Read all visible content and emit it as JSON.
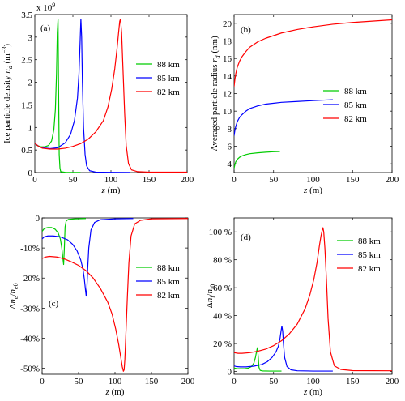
{
  "figure": {
    "panels": [
      "a",
      "b",
      "c",
      "d"
    ]
  },
  "chart_data": [
    {
      "type": "line",
      "panel_label": "(a)",
      "xlabel": "z (m)",
      "ylabel": "Ice particle density n_d (m^-3)",
      "y_multiplier": "x 10^9",
      "xlim": [
        0,
        200
      ],
      "ylim": [
        0,
        3.5
      ],
      "xticks": [
        0,
        50,
        100,
        150,
        200
      ],
      "yticks": [
        0,
        0.5,
        1,
        1.5,
        2,
        2.5,
        3,
        3.5
      ],
      "ytick_labels": [
        "0",
        "0.5",
        "1",
        "1.5",
        "2",
        "2.5",
        "3",
        "3.5"
      ],
      "grid": false,
      "legend_position": "right",
      "series": [
        {
          "name": "88 km",
          "color": "#00cc00",
          "x": [
            0,
            3,
            8,
            13,
            18,
            22,
            25,
            27,
            28.5,
            29.5,
            30.5,
            31,
            32,
            33,
            34,
            40,
            60
          ],
          "y": [
            0.65,
            0.6,
            0.57,
            0.57,
            0.6,
            0.7,
            0.95,
            1.4,
            2.2,
            3.1,
            3.4,
            2.2,
            0.4,
            0.1,
            0.02,
            0.005,
            0.003
          ]
        },
        {
          "name": "85 km",
          "color": "#0000ff",
          "x": [
            0,
            5,
            10,
            20,
            30,
            40,
            47,
            52,
            56,
            58,
            59.5,
            60.5,
            61.5,
            62.5,
            64,
            66,
            68,
            72,
            80,
            100,
            125
          ],
          "y": [
            0.65,
            0.58,
            0.55,
            0.53,
            0.55,
            0.66,
            0.85,
            1.15,
            1.65,
            2.2,
            2.9,
            3.4,
            3.0,
            2.0,
            1.0,
            0.4,
            0.15,
            0.04,
            0.01,
            0.005,
            0.003
          ]
        },
        {
          "name": "82 km",
          "color": "#ff0000",
          "x": [
            0,
            5,
            10,
            20,
            30,
            40,
            50,
            60,
            70,
            80,
            90,
            96,
            101,
            105,
            108,
            110,
            111.5,
            112.5,
            114,
            116,
            118,
            120,
            123,
            127,
            135,
            150,
            200
          ],
          "y": [
            0.65,
            0.58,
            0.54,
            0.52,
            0.52,
            0.54,
            0.58,
            0.64,
            0.74,
            0.9,
            1.15,
            1.45,
            1.85,
            2.3,
            2.75,
            3.1,
            3.35,
            3.4,
            3.1,
            2.2,
            1.3,
            0.6,
            0.2,
            0.06,
            0.02,
            0.01,
            0.01
          ]
        }
      ]
    },
    {
      "type": "line",
      "panel_label": "(b)",
      "xlabel": "z (m)",
      "ylabel": "Averaged particle radius r_d (nm)",
      "xlim": [
        0,
        200
      ],
      "ylim": [
        3,
        21
      ],
      "xticks": [
        0,
        50,
        100,
        150,
        200
      ],
      "yticks": [
        4,
        6,
        8,
        10,
        12,
        14,
        16,
        18,
        20
      ],
      "grid": false,
      "legend_position": "right",
      "series": [
        {
          "name": "88 km",
          "color": "#00cc00",
          "x": [
            0,
            1,
            2,
            4,
            7,
            10,
            15,
            20,
            30,
            40,
            50,
            58
          ],
          "y": [
            3.5,
            3.9,
            4.2,
            4.5,
            4.75,
            4.9,
            5.05,
            5.15,
            5.25,
            5.32,
            5.37,
            5.4
          ]
        },
        {
          "name": "85 km",
          "color": "#0000ff",
          "x": [
            0,
            1,
            2,
            4,
            7,
            10,
            15,
            20,
            30,
            40,
            60,
            80,
            100,
            125
          ],
          "y": [
            7.2,
            7.8,
            8.2,
            8.8,
            9.3,
            9.6,
            10.0,
            10.3,
            10.6,
            10.8,
            11.0,
            11.1,
            11.2,
            11.3
          ]
        },
        {
          "name": "82 km",
          "color": "#ff0000",
          "x": [
            0,
            1,
            2,
            4,
            7,
            10,
            15,
            20,
            30,
            40,
            60,
            80,
            100,
            125,
            150,
            175,
            200
          ],
          "y": [
            12.8,
            13.6,
            14.2,
            15.0,
            15.7,
            16.2,
            16.8,
            17.3,
            17.9,
            18.3,
            18.9,
            19.3,
            19.6,
            19.9,
            20.1,
            20.25,
            20.4
          ]
        }
      ]
    },
    {
      "type": "line",
      "panel_label": "(c)",
      "xlabel": "z (m)",
      "ylabel": "Δn_e/n_e0",
      "xlim": [
        0,
        200
      ],
      "ylim": [
        -52,
        0
      ],
      "xticks": [
        0,
        50,
        100,
        150,
        200
      ],
      "yticks": [
        0,
        -10,
        -20,
        -30,
        -40,
        -50
      ],
      "ytick_labels": [
        "0",
        "-10%",
        "-20%",
        "-30%",
        "-40%",
        "-50%"
      ],
      "grid": false,
      "legend_position": "right",
      "series": [
        {
          "name": "88 km",
          "color": "#00cc00",
          "x": [
            0,
            3,
            8,
            13,
            18,
            22,
            25,
            27,
            28.5,
            29.5,
            30.5,
            31.5,
            33,
            36,
            45,
            60
          ],
          "y": [
            -4.5,
            -3.5,
            -3.2,
            -3.2,
            -3.8,
            -5.0,
            -7.0,
            -10.0,
            -13.5,
            -15.5,
            -10.0,
            -3.0,
            -1.0,
            -0.5,
            -0.3,
            -0.2
          ]
        },
        {
          "name": "85 km",
          "color": "#0000ff",
          "x": [
            0,
            3,
            8,
            15,
            25,
            35,
            42,
            48,
            53,
            56,
            58,
            59.5,
            60.5,
            61.5,
            62.5,
            64,
            67,
            72,
            80,
            100,
            125
          ],
          "y": [
            -7.0,
            -6.3,
            -6.0,
            -6.0,
            -6.3,
            -7.3,
            -8.8,
            -11.0,
            -14.0,
            -17.0,
            -20.5,
            -24.0,
            -26.0,
            -23.0,
            -17.0,
            -10.0,
            -4.0,
            -1.5,
            -0.6,
            -0.3,
            -0.2
          ]
        },
        {
          "name": "82 km",
          "color": "#ff0000",
          "x": [
            0,
            5,
            10,
            20,
            30,
            40,
            50,
            60,
            70,
            80,
            90,
            96,
            101,
            105,
            108,
            110,
            111.5,
            112.5,
            113.5,
            115,
            117,
            119,
            122,
            127,
            135,
            150,
            200
          ],
          "y": [
            -13.5,
            -13.0,
            -12.8,
            -13.0,
            -13.6,
            -14.6,
            -15.8,
            -17.5,
            -20.0,
            -23.5,
            -28.0,
            -32.0,
            -37.0,
            -42.0,
            -46.5,
            -49.5,
            -51.0,
            -50.5,
            -47.0,
            -38.0,
            -26.0,
            -15.0,
            -6.0,
            -2.0,
            -0.8,
            -0.3,
            -0.2
          ]
        }
      ]
    },
    {
      "type": "line",
      "panel_label": "(d)",
      "xlabel": "z (m)",
      "ylabel": "Δn_i/n_i0",
      "xlim": [
        0,
        200
      ],
      "ylim": [
        -2,
        110
      ],
      "xticks": [
        0,
        50,
        100,
        150,
        200
      ],
      "yticks": [
        0,
        20,
        40,
        60,
        80,
        100
      ],
      "ytick_labels": [
        "0",
        "20 %",
        "40 %",
        "60 %",
        "80 %",
        "100 %"
      ],
      "grid": false,
      "legend_position": "top-right",
      "series": [
        {
          "name": "88 km",
          "color": "#00cc00",
          "x": [
            0,
            3,
            8,
            13,
            18,
            22,
            25,
            27,
            28.5,
            29.5,
            30.5,
            31.5,
            33,
            36,
            45,
            60
          ],
          "y": [
            2.5,
            2.1,
            2.0,
            2.0,
            2.4,
            3.5,
            6.0,
            10.0,
            14.5,
            17.0,
            11.0,
            3.0,
            0.8,
            0.4,
            0.3,
            0.3
          ]
        },
        {
          "name": "85 km",
          "color": "#0000ff",
          "x": [
            0,
            3,
            8,
            15,
            25,
            35,
            42,
            48,
            53,
            56,
            58,
            59.5,
            60.5,
            61.5,
            62.5,
            64,
            67,
            72,
            80,
            100,
            125
          ],
          "y": [
            4.0,
            3.5,
            3.3,
            3.3,
            3.8,
            5.0,
            7.0,
            10.0,
            14.0,
            18.0,
            23.0,
            29.0,
            32.5,
            29.0,
            20.0,
            10.0,
            3.5,
            1.2,
            0.5,
            0.3,
            0.3
          ]
        },
        {
          "name": "82 km",
          "color": "#ff0000",
          "x": [
            0,
            5,
            10,
            20,
            30,
            40,
            50,
            60,
            70,
            80,
            90,
            96,
            101,
            105,
            108,
            110,
            111.5,
            112.5,
            113.5,
            115,
            117,
            119,
            122,
            127,
            135,
            150,
            200
          ],
          "y": [
            13.5,
            13.0,
            13.0,
            13.5,
            14.5,
            16.0,
            18.5,
            22.0,
            27.0,
            34.0,
            45.0,
            55.0,
            66.0,
            78.0,
            90.0,
            97.0,
            101.0,
            103.0,
            100.0,
            88.0,
            65.0,
            38.0,
            14.0,
            4.0,
            1.5,
            0.6,
            0.5
          ]
        }
      ]
    }
  ]
}
